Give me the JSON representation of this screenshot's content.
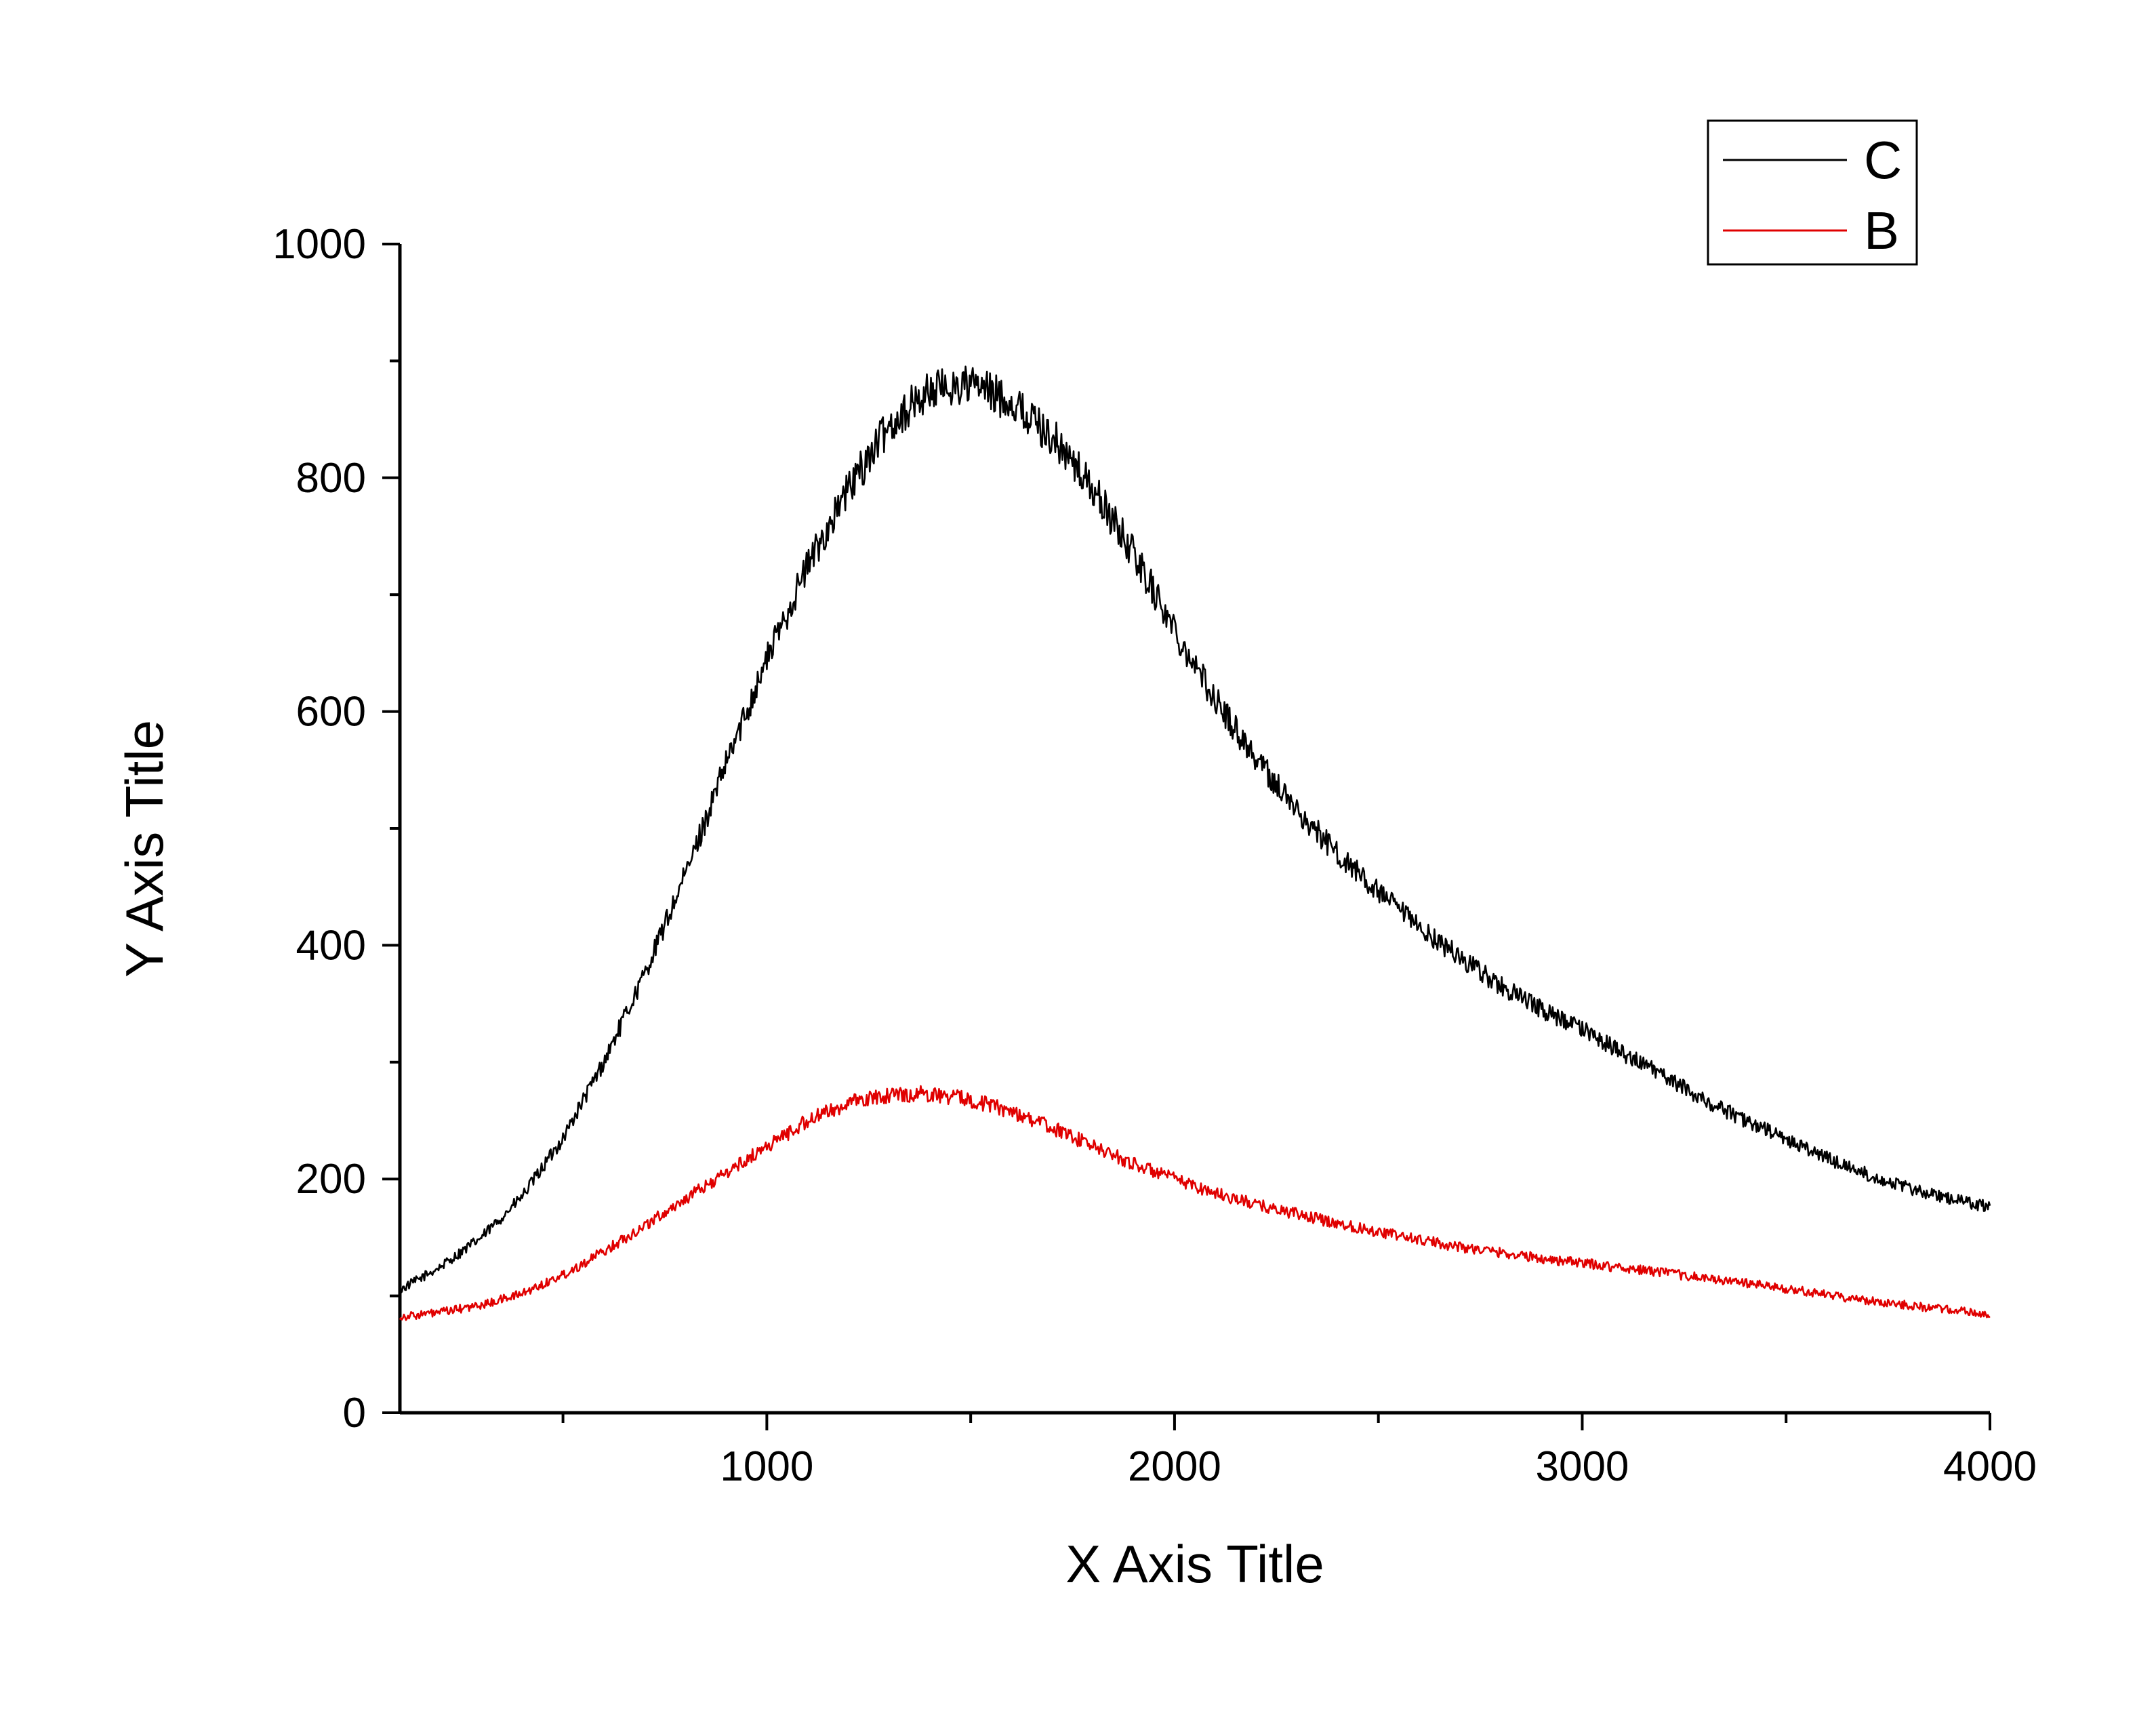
{
  "chart_data": {
    "type": "line",
    "title": "",
    "xlabel": "X Axis Title",
    "ylabel": "Y Axis Title",
    "xlim": [
      100,
      4000
    ],
    "ylim": [
      0,
      1000
    ],
    "x_ticks": [
      1000,
      2000,
      3000,
      4000
    ],
    "x_tick_labels": [
      "1000",
      "2000",
      "3000",
      "4000"
    ],
    "y_ticks": [
      0,
      200,
      400,
      600,
      800,
      1000
    ],
    "y_tick_labels": [
      "0",
      "200",
      "400",
      "600",
      "800",
      "1000"
    ],
    "grid": false,
    "legend_position": "top-right",
    "x": [
      100,
      200,
      300,
      400,
      500,
      600,
      700,
      800,
      900,
      1000,
      1100,
      1200,
      1300,
      1400,
      1500,
      1600,
      1700,
      1800,
      1900,
      2000,
      2100,
      2200,
      2300,
      2400,
      2500,
      2600,
      2700,
      2800,
      2900,
      3000,
      3100,
      3200,
      3300,
      3400,
      3500,
      3600,
      3700,
      3800,
      3900,
      4000
    ],
    "series": [
      {
        "name": "C",
        "color": "#000000",
        "values": [
          105,
          125,
          150,
          185,
          235,
          300,
          375,
          460,
          555,
          645,
          725,
          790,
          845,
          875,
          880,
          865,
          835,
          790,
          735,
          670,
          610,
          560,
          515,
          478,
          445,
          415,
          390,
          365,
          345,
          328,
          308,
          288,
          268,
          250,
          234,
          218,
          204,
          192,
          183,
          176
        ]
      },
      {
        "name": "B",
        "color": "#e00000",
        "values": [
          82,
          86,
          92,
          102,
          118,
          138,
          160,
          183,
          205,
          228,
          250,
          265,
          272,
          273,
          268,
          258,
          244,
          228,
          213,
          200,
          188,
          178,
          170,
          162,
          155,
          148,
          142,
          137,
          132,
          128,
          124,
          120,
          115,
          111,
          106,
          101,
          96,
          92,
          88,
          84
        ]
      }
    ]
  }
}
